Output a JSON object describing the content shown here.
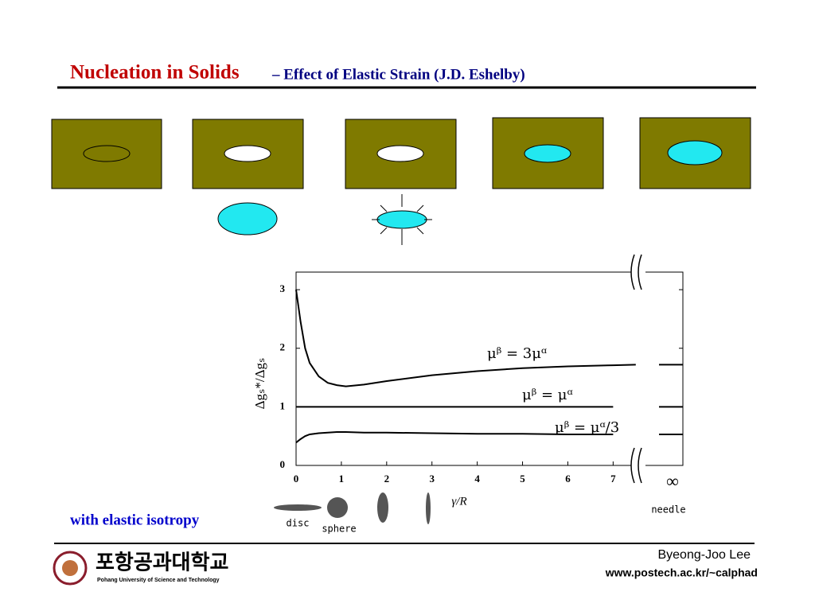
{
  "header": {
    "title": "Nucleation in Solids",
    "subtitle": "–  Effect of Elastic Strain  (J.D. Eshelby)"
  },
  "note": "with elastic isotropy",
  "footer": {
    "author": "Byeong-Joo Lee",
    "url": "www.postech.ac.kr/~calphad",
    "logo_text": "포항공과대학교",
    "logo_subtext": "Pohang University of Science and Technology"
  },
  "chart_data": {
    "type": "line",
    "x": [
      0,
      0.1,
      0.2,
      0.3,
      0.5,
      0.7,
      0.9,
      1.1,
      1.5,
      2,
      3,
      4,
      5,
      6,
      7,
      7.5
    ],
    "series": [
      {
        "name": "μᵝ = 3μᵅ",
        "color": "#000000",
        "values": [
          3.0,
          2.45,
          2.0,
          1.75,
          1.52,
          1.41,
          1.37,
          1.35,
          1.38,
          1.44,
          1.54,
          1.61,
          1.66,
          1.69,
          1.71,
          1.72
        ],
        "limit": 1.72
      },
      {
        "name": "μᵝ = μᵅ",
        "color": "#000000",
        "values": [
          1,
          1,
          1,
          1,
          1,
          1,
          1,
          1,
          1,
          1,
          1,
          1,
          1,
          1,
          1,
          null
        ],
        "limit": 1
      },
      {
        "name": "μᵝ = μᵅ/3",
        "color": "#000000",
        "values": [
          0.39,
          0.45,
          0.5,
          0.53,
          0.55,
          0.56,
          0.57,
          0.57,
          0.56,
          0.56,
          0.55,
          0.54,
          0.54,
          0.53,
          0.53,
          null
        ],
        "limit": 0.53
      }
    ],
    "xlim": [
      0,
      8.54
    ],
    "ylim": [
      0,
      3.3
    ],
    "xticks": [
      0,
      1,
      2,
      3,
      4,
      5,
      6,
      7
    ],
    "yticks": [
      0,
      1,
      2,
      3
    ],
    "xlabel": "γ/R",
    "ylabel": "Δgₛ*/Δgₛ",
    "infinity_label": "∞",
    "shape_labels": [
      "disc",
      "sphere",
      "needle"
    ]
  }
}
